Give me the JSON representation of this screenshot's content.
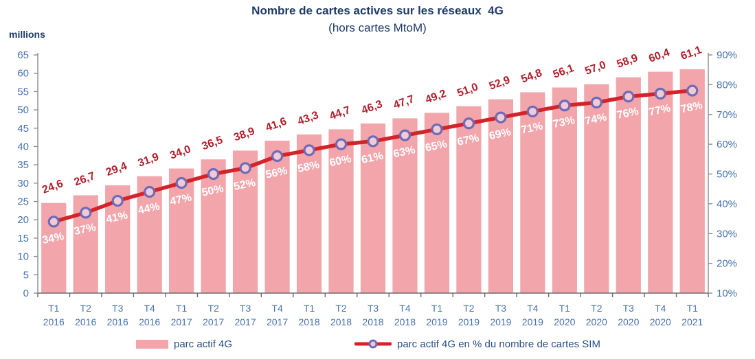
{
  "chart_data": {
    "type": "bar",
    "title": "Nombre de cartes actives sur les réseaux  4G",
    "subtitle": "(hors cartes MtoM)",
    "categories_line1": [
      "T1",
      "T2",
      "T3",
      "T4",
      "T1",
      "T2",
      "T3",
      "T4",
      "T1",
      "T2",
      "T3",
      "T4",
      "T1",
      "T2",
      "T3",
      "T4",
      "T1",
      "T2",
      "T3",
      "T4",
      "T1"
    ],
    "categories_line2": [
      "2016",
      "2016",
      "2016",
      "2016",
      "2017",
      "2017",
      "2017",
      "2017",
      "2018",
      "2018",
      "2018",
      "2018",
      "2019",
      "2019",
      "2019",
      "2019",
      "2020",
      "2020",
      "2020",
      "2020",
      "2021"
    ],
    "series": [
      {
        "name": "parc actif 4G",
        "type": "bar",
        "axis": "left",
        "values": [
          24.6,
          26.7,
          29.4,
          31.9,
          34.0,
          36.5,
          38.9,
          41.6,
          43.3,
          44.7,
          46.3,
          47.7,
          49.2,
          51.0,
          52.9,
          54.8,
          56.1,
          57.0,
          58.9,
          60.4,
          61.1
        ],
        "labels": [
          "24,6",
          "26,7",
          "29,4",
          "31,9",
          "34,0",
          "36,5",
          "38,9",
          "41,6",
          "43,3",
          "44,7",
          "46,3",
          "47,7",
          "49,2",
          "51,0",
          "52,9",
          "54,8",
          "56,1",
          "57,0",
          "58,9",
          "60,4",
          "61,1"
        ]
      },
      {
        "name": "parc actif 4G en % du nombre de cartes SIM",
        "type": "line",
        "axis": "right",
        "values": [
          34,
          37,
          41,
          44,
          47,
          50,
          52,
          56,
          58,
          60,
          61,
          63,
          65,
          67,
          69,
          71,
          73,
          74,
          76,
          77,
          78
        ],
        "labels": [
          "34%",
          "37%",
          "41%",
          "44%",
          "47%",
          "50%",
          "52%",
          "56%",
          "58%",
          "60%",
          "61%",
          "63%",
          "65%",
          "67%",
          "69%",
          "71%",
          "73%",
          "74%",
          "76%",
          "77%",
          "78%"
        ]
      }
    ],
    "left_axis": {
      "label": "millions",
      "min": 0,
      "max": 65,
      "step": 5
    },
    "right_axis": {
      "min": 10,
      "max": 90,
      "step": 10,
      "suffix": "%"
    },
    "grid": false,
    "legend_position": "bottom"
  },
  "colors": {
    "title_text": "#1E3A66",
    "axis_text": "#4673AE",
    "axis_line": "#8C8C8C",
    "bar_fill": "#F2A6AC",
    "bar_value_label": "#B01F2B",
    "line": "#D3242B",
    "marker_ring": "#6E6BB7",
    "marker_fill": "#F0CBD6",
    "pct_label": "#FFFFFF",
    "legend_text": "#2A4E88"
  }
}
